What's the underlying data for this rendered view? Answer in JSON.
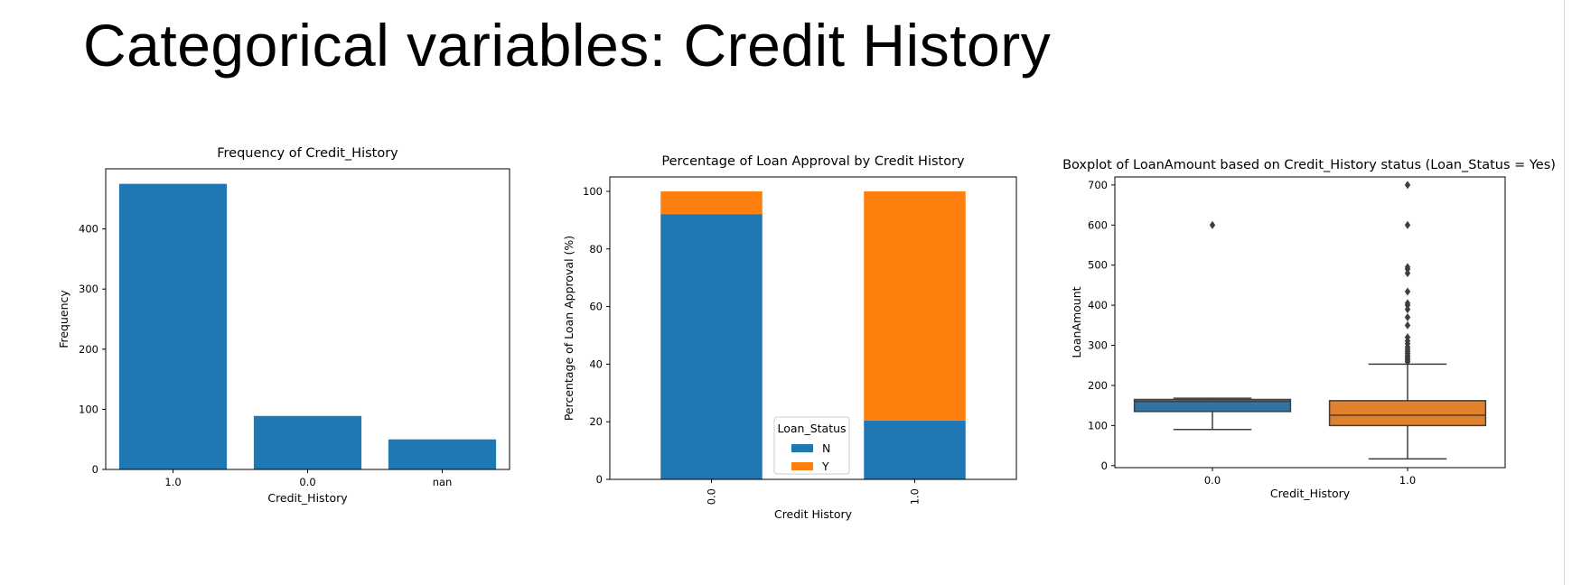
{
  "slide": {
    "title": "Categorical variables: Credit History"
  },
  "chart_data": [
    {
      "type": "bar",
      "title": "Frequency of Credit_History",
      "xlabel": "Credit_History",
      "ylabel": "Frequency",
      "categories": [
        "1.0",
        "0.0",
        "nan"
      ],
      "values": [
        475,
        89,
        50
      ],
      "ylim": [
        0,
        500
      ],
      "yticks": [
        0,
        100,
        200,
        300,
        400
      ],
      "color": "#1f77b4",
      "grid": false
    },
    {
      "type": "bar",
      "stacked": true,
      "title": "Percentage of Loan Approval by Credit History",
      "xlabel": "Credit History",
      "ylabel": "Percentage of Loan Approval (%)",
      "categories": [
        "0.0",
        "1.0"
      ],
      "series": [
        {
          "name": "N",
          "values": [
            92.1,
            20.4
          ],
          "color": "#1f77b4"
        },
        {
          "name": "Y",
          "values": [
            7.9,
            79.6
          ],
          "color": "#ff7f0e"
        }
      ],
      "ylim": [
        0,
        105
      ],
      "yticks": [
        0,
        20,
        40,
        60,
        80,
        100
      ],
      "legend": {
        "title": "Loan_Status",
        "placement": "bottom-center"
      },
      "xtick_rotation": 90,
      "grid": false
    },
    {
      "type": "box",
      "title": "Boxplot of LoanAmount based on Credit_History status (Loan_Status = Yes)",
      "xlabel": "Credit_History",
      "ylabel": "LoanAmount",
      "categories": [
        "0.0",
        "1.0"
      ],
      "boxes": [
        {
          "whisker_low": 90,
          "q1": 135,
          "median": 160,
          "q3": 165,
          "whisker_high": 168,
          "outliers": [
            600
          ],
          "color": "#3274a1"
        },
        {
          "whisker_low": 17,
          "q1": 100,
          "median": 126,
          "q3": 162,
          "whisker_high": 253,
          "outliers": [
            259,
            263,
            267,
            271,
            275,
            280,
            285,
            290,
            296,
            304,
            311,
            320,
            350,
            370,
            390,
            400,
            405,
            434,
            480,
            490,
            495,
            600,
            700
          ],
          "color": "#e1812c"
        }
      ],
      "ylim": [
        -5,
        720
      ],
      "yticks": [
        0,
        100,
        200,
        300,
        400,
        500,
        600,
        700
      ],
      "grid": false
    }
  ]
}
